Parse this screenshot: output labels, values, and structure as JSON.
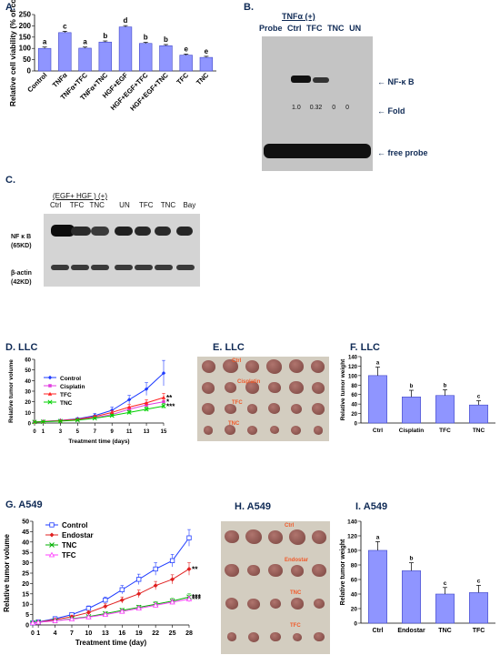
{
  "colors": {
    "bar": "#8f95ff",
    "barEdge": "#3f46c8",
    "gelBg": "#c8c8c8",
    "band": "#1a1a1a",
    "photoBg": "#d3cdc0",
    "tumor": "#8e5a55",
    "orange": "#f05a2a",
    "navy": "#0f2a55"
  },
  "panels": {
    "A": {
      "label": "A.",
      "ylabel": "Relative cell viability (% of control)"
    },
    "B": {
      "label": "B.",
      "header": "TNFα  (+)",
      "lanes": [
        "Probe",
        "Ctrl",
        "TFC",
        "TNC",
        "UN"
      ],
      "annotations": [
        "NF-κ B",
        "Fold",
        "free probe"
      ],
      "fold": [
        "1.0",
        "0.32",
        "0",
        "0"
      ]
    },
    "C": {
      "label": "C.",
      "header": "(EGF+ HGF ) (+)",
      "lanes": [
        "Ctrl",
        "TFC",
        "TNC",
        "UN",
        "TFC",
        "TNC",
        "Bay"
      ],
      "rows": [
        {
          "name": "NF κ B",
          "sub": "(65KD)"
        },
        {
          "name": "β-actin",
          "sub": "(42KD)"
        }
      ]
    },
    "D": {
      "label": "D. LLC"
    },
    "E": {
      "label": "E. LLC",
      "tags": [
        "Ctrl",
        "Cisplatin",
        "TFC",
        "TNC"
      ]
    },
    "F": {
      "label": "F. LLC"
    },
    "G": {
      "label": "G. A549"
    },
    "H": {
      "label": "H. A549",
      "tags": [
        "Ctrl",
        "Endostar",
        "TNC",
        "TFC"
      ]
    },
    "I": {
      "label": "I. A549"
    }
  },
  "chart_data": [
    {
      "id": "A",
      "type": "bar",
      "ylabel": "Relative cell viability (% of control)",
      "ylim": [
        0,
        250
      ],
      "yticks": [
        0,
        50,
        100,
        150,
        200,
        250
      ],
      "categories": [
        "Control",
        "TNFα",
        "TNFα+TFC",
        "TNFα+TNC",
        "HGF+EGF",
        "HGF+EGF+TFC",
        "HGF+EGF+TNC",
        "TFC",
        "TNC"
      ],
      "values": [
        100,
        170,
        101,
        128,
        195,
        122,
        112,
        70,
        60
      ],
      "errors": [
        6,
        6,
        5,
        5,
        6,
        5,
        5,
        5,
        5
      ],
      "letters": [
        "a",
        "c",
        "a",
        "b",
        "d",
        "b",
        "b",
        "e",
        "e"
      ]
    },
    {
      "id": "D",
      "type": "line",
      "xlabel": "Treatment time (days)",
      "ylabel": "Relative tumor volume",
      "xlim": [
        0,
        15
      ],
      "ylim": [
        0,
        60
      ],
      "xticks": [
        0,
        1,
        3,
        5,
        7,
        9,
        11,
        13,
        15
      ],
      "yticks": [
        0,
        10,
        20,
        30,
        40,
        50,
        60
      ],
      "x": [
        0,
        1,
        3,
        5,
        7,
        9,
        11,
        13,
        15
      ],
      "series": [
        {
          "name": "Control",
          "color": "#1f3cff",
          "marker": "diamond",
          "values": [
            1,
            1.5,
            2.5,
            4,
            7,
            12,
            22,
            32,
            47
          ],
          "errors": [
            0,
            0.3,
            0.5,
            1,
            2,
            3,
            4,
            6,
            12
          ]
        },
        {
          "name": "Cisplatin",
          "color": "#e03ce0",
          "marker": "square",
          "values": [
            1,
            1.3,
            2,
            3,
            5,
            8,
            13,
            17,
            20
          ],
          "errors": [
            0,
            0.2,
            0.4,
            0.6,
            1,
            1.5,
            2,
            2.5,
            3
          ]
        },
        {
          "name": "TFC",
          "color": "#ff2020",
          "marker": "triangle",
          "values": [
            1,
            1.4,
            2.3,
            3.5,
            6,
            10,
            15,
            19,
            24
          ],
          "errors": [
            0,
            0.2,
            0.4,
            0.7,
            1.2,
            1.8,
            2.5,
            3,
            4
          ]
        },
        {
          "name": "TNC",
          "color": "#00d000",
          "marker": "x",
          "values": [
            1,
            1.2,
            1.8,
            2.7,
            4.5,
            7,
            10,
            13,
            16
          ],
          "errors": [
            0,
            0.2,
            0.3,
            0.5,
            0.8,
            1.2,
            1.6,
            2,
            2.5
          ]
        }
      ],
      "sig": [
        "*",
        "**",
        "***"
      ]
    },
    {
      "id": "F",
      "type": "bar",
      "ylabel": "Relative tumor weight",
      "ylim": [
        0,
        140
      ],
      "yticks": [
        0,
        20,
        40,
        60,
        80,
        100,
        120,
        140
      ],
      "categories": [
        "Ctrl",
        "Cisplatin",
        "TFC",
        "TNC"
      ],
      "values": [
        100,
        55,
        58,
        38
      ],
      "errors": [
        18,
        14,
        12,
        9
      ],
      "letters": [
        "a",
        "b",
        "b",
        "c"
      ]
    },
    {
      "id": "G",
      "type": "line",
      "xlabel": "Treatment time (day)",
      "ylabel": "Relative tumor volume",
      "xlim": [
        0,
        28
      ],
      "ylim": [
        0,
        50
      ],
      "xticks": [
        0,
        1,
        4,
        7,
        10,
        13,
        16,
        19,
        22,
        25,
        28
      ],
      "yticks": [
        0,
        5,
        10,
        15,
        20,
        25,
        30,
        35,
        40,
        45,
        50
      ],
      "x": [
        0,
        1,
        4,
        7,
        10,
        13,
        16,
        19,
        22,
        25,
        28
      ],
      "series": [
        {
          "name": "Control",
          "color": "#1f3cff",
          "marker": "square-open",
          "values": [
            1,
            1.5,
            3,
            5,
            8,
            12,
            17,
            22,
            27,
            31,
            42
          ],
          "errors": [
            0,
            0.3,
            0.5,
            0.8,
            1.2,
            1.5,
            2,
            2.5,
            3,
            3,
            4
          ]
        },
        {
          "name": "Endostar",
          "color": "#e02020",
          "marker": "diamond",
          "values": [
            1,
            1.4,
            2.6,
            4,
            6,
            9,
            12,
            15,
            19,
            22,
            27
          ],
          "errors": [
            0,
            0.2,
            0.4,
            0.6,
            0.9,
            1.2,
            1.5,
            1.8,
            2,
            2.2,
            3
          ]
        },
        {
          "name": "TNC",
          "color": "#00b000",
          "marker": "x",
          "values": [
            1,
            1.3,
            2,
            3,
            4,
            5.5,
            7,
            8.5,
            10,
            11.5,
            13.5
          ],
          "errors": [
            0,
            0.2,
            0.3,
            0.4,
            0.5,
            0.7,
            0.9,
            1,
            1.2,
            1.3,
            1.5
          ]
        },
        {
          "name": "TFC",
          "color": "#ff40ff",
          "marker": "triangle-open",
          "values": [
            1,
            1.3,
            2,
            2.8,
            3.8,
            5,
            6.5,
            8,
            9.5,
            11,
            12.5
          ],
          "errors": [
            0,
            0.2,
            0.3,
            0.4,
            0.5,
            0.6,
            0.8,
            0.9,
            1,
            1.1,
            1.4
          ]
        }
      ],
      "sig": [
        "**",
        "***",
        "***"
      ]
    },
    {
      "id": "I",
      "type": "bar",
      "ylabel": "Relative tumor weight",
      "ylim": [
        0,
        140
      ],
      "yticks": [
        0,
        20,
        40,
        60,
        80,
        100,
        120,
        140
      ],
      "categories": [
        "Ctrl",
        "Endostar",
        "TNC",
        "TFC"
      ],
      "values": [
        100,
        72,
        40,
        42
      ],
      "errors": [
        12,
        11,
        9,
        10
      ],
      "letters": [
        "a",
        "b",
        "c",
        "c"
      ]
    }
  ]
}
